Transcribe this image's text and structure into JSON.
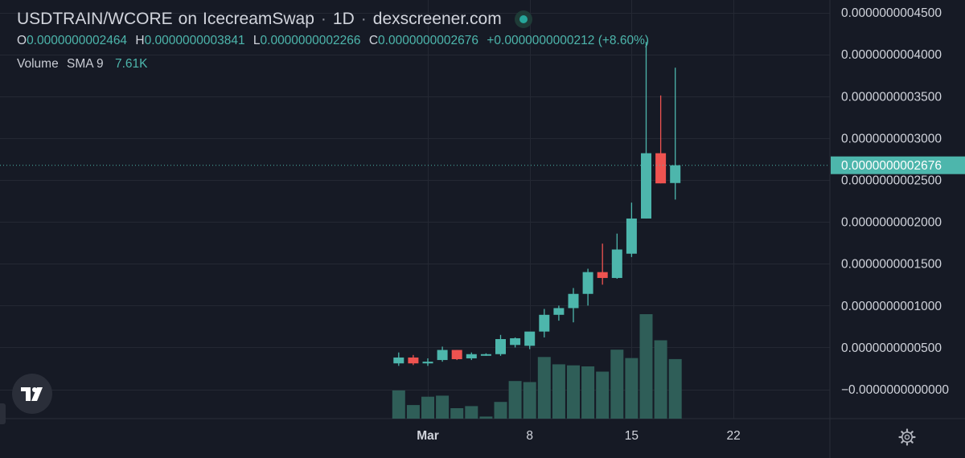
{
  "header": {
    "pair": "USDTRAIN/WCORE",
    "on_word": "on",
    "exchange": "IcecreamSwap",
    "timeframe": "1D",
    "site": "dexscreener.com",
    "separator": "·"
  },
  "ohlc": {
    "o_label": "O",
    "o_value": "0.0000000002464",
    "h_label": "H",
    "h_value": "0.0000000003841",
    "l_label": "L",
    "l_value": "0.0000000002266",
    "c_label": "C",
    "c_value": "0.0000000002676",
    "change": "+0.0000000000212 (+8.60%)"
  },
  "volume_legend": {
    "label": "Volume",
    "indicator": "SMA 9",
    "value": "7.61K"
  },
  "colors": {
    "bg": "#161a25",
    "up": "#4db6ac",
    "down": "#ef5350",
    "volume": "#2f5e58",
    "grid": "#242833",
    "text": "#d1d4dc",
    "price_tag": "#4db6ac"
  },
  "icons": {
    "logo": "tradingview-logo-icon",
    "settings": "gear-icon",
    "status": "status-dot-icon"
  },
  "chart_data": {
    "type": "candlestick",
    "y_unit_scale": 1e-10,
    "ylim": [
      -0.35,
      4.65
    ],
    "y_ticks": [
      {
        "value": 4.5,
        "label": "0.0000000004500"
      },
      {
        "value": 4.0,
        "label": "0.0000000004000"
      },
      {
        "value": 3.5,
        "label": "0.0000000003500"
      },
      {
        "value": 3.0,
        "label": "0.0000000003000"
      },
      {
        "value": 2.5,
        "label": "0.0000000002500"
      },
      {
        "value": 2.0,
        "label": "0.0000000002000"
      },
      {
        "value": 1.5,
        "label": "0.0000000001500"
      },
      {
        "value": 1.0,
        "label": "0.0000000001000"
      },
      {
        "value": 0.5,
        "label": "0.0000000000500"
      },
      {
        "value": -0.0001,
        "label": "−0.0000000000000"
      }
    ],
    "x_ticks": [
      {
        "day": 0,
        "label": "Mar"
      },
      {
        "day": 7,
        "label": "8"
      },
      {
        "day": 14,
        "label": "15"
      },
      {
        "day": 21,
        "label": "22"
      }
    ],
    "last_price": {
      "value": 2.676,
      "label": "0.0000000002676"
    },
    "candles": [
      {
        "day": -2,
        "open": 0.31,
        "high": 0.44,
        "low": 0.28,
        "close": 0.38
      },
      {
        "day": -1,
        "open": 0.38,
        "high": 0.41,
        "low": 0.29,
        "close": 0.31
      },
      {
        "day": 0,
        "open": 0.31,
        "high": 0.37,
        "low": 0.28,
        "close": 0.33
      },
      {
        "day": 1,
        "open": 0.35,
        "high": 0.51,
        "low": 0.33,
        "close": 0.47
      },
      {
        "day": 2,
        "open": 0.47,
        "high": 0.47,
        "low": 0.35,
        "close": 0.36
      },
      {
        "day": 3,
        "open": 0.37,
        "high": 0.44,
        "low": 0.35,
        "close": 0.42
      },
      {
        "day": 4,
        "open": 0.42,
        "high": 0.43,
        "low": 0.4,
        "close": 0.42
      },
      {
        "day": 5,
        "open": 0.42,
        "high": 0.65,
        "low": 0.4,
        "close": 0.6
      },
      {
        "day": 6,
        "open": 0.53,
        "high": 0.62,
        "low": 0.5,
        "close": 0.61
      },
      {
        "day": 7,
        "open": 0.52,
        "high": 0.68,
        "low": 0.48,
        "close": 0.69
      },
      {
        "day": 8,
        "open": 0.69,
        "high": 0.96,
        "low": 0.62,
        "close": 0.89
      },
      {
        "day": 9,
        "open": 0.89,
        "high": 1.0,
        "low": 0.82,
        "close": 0.97
      },
      {
        "day": 10,
        "open": 0.97,
        "high": 1.21,
        "low": 0.8,
        "close": 1.14
      },
      {
        "day": 11,
        "open": 1.14,
        "high": 1.44,
        "low": 1.0,
        "close": 1.4
      },
      {
        "day": 12,
        "open": 1.4,
        "high": 1.74,
        "low": 1.25,
        "close": 1.33
      },
      {
        "day": 13,
        "open": 1.33,
        "high": 1.86,
        "low": 1.32,
        "close": 1.67
      },
      {
        "day": 14,
        "open": 1.62,
        "high": 2.23,
        "low": 1.58,
        "close": 2.04
      },
      {
        "day": 15,
        "open": 2.04,
        "high": 4.15,
        "low": 2.04,
        "close": 2.82
      },
      {
        "day": 16,
        "open": 2.82,
        "high": 3.51,
        "low": 2.46,
        "close": 2.46
      },
      {
        "day": 17,
        "open": 2.464,
        "high": 3.841,
        "low": 2.266,
        "close": 2.676
      }
    ],
    "volume": [
      {
        "day": -2,
        "value": 27
      },
      {
        "day": -1,
        "value": 13
      },
      {
        "day": 0,
        "value": 21
      },
      {
        "day": 1,
        "value": 22
      },
      {
        "day": 2,
        "value": 10
      },
      {
        "day": 3,
        "value": 12
      },
      {
        "day": 4,
        "value": 2
      },
      {
        "day": 5,
        "value": 16
      },
      {
        "day": 6,
        "value": 36
      },
      {
        "day": 7,
        "value": 35
      },
      {
        "day": 8,
        "value": 59
      },
      {
        "day": 9,
        "value": 52
      },
      {
        "day": 10,
        "value": 51
      },
      {
        "day": 11,
        "value": 50
      },
      {
        "day": 12,
        "value": 45
      },
      {
        "day": 13,
        "value": 66
      },
      {
        "day": 14,
        "value": 58
      },
      {
        "day": 15,
        "value": 100
      },
      {
        "day": 16,
        "value": 75
      },
      {
        "day": 17,
        "value": 57
      }
    ]
  }
}
